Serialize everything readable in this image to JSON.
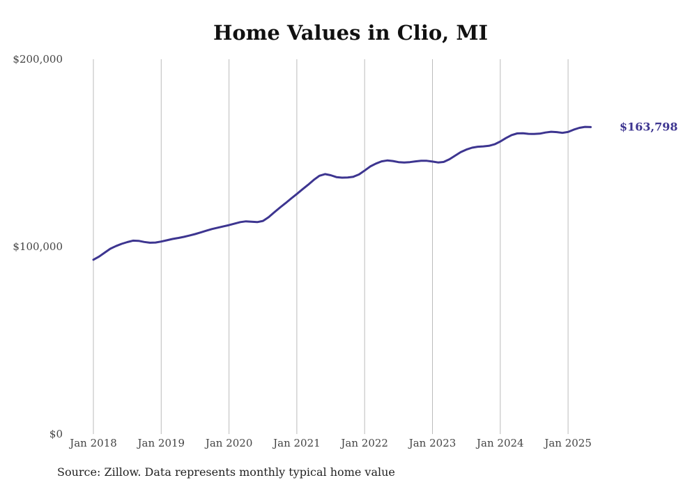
{
  "title": "Home Values in Clio, MI",
  "source_note": "Source: Zillow. Data represents monthly typical home value",
  "colors": {
    "line": "#3d3590",
    "grid": "#bbbbbb",
    "text": "#444444"
  },
  "chart_data": {
    "type": "line",
    "title": "Home Values in Clio, MI",
    "xlabel": "",
    "ylabel": "",
    "ylim": [
      0,
      200000
    ],
    "y_ticks": [
      {
        "value": 0,
        "label": "$0"
      },
      {
        "value": 100000,
        "label": "$100,000"
      },
      {
        "value": 200000,
        "label": "$200,000"
      }
    ],
    "x_ticks": [
      {
        "date": "2018-01",
        "label": "Jan 2018"
      },
      {
        "date": "2019-01",
        "label": "Jan 2019"
      },
      {
        "date": "2020-01",
        "label": "Jan 2020"
      },
      {
        "date": "2021-01",
        "label": "Jan 2021"
      },
      {
        "date": "2022-01",
        "label": "Jan 2022"
      },
      {
        "date": "2023-01",
        "label": "Jan 2023"
      },
      {
        "date": "2024-01",
        "label": "Jan 2024"
      },
      {
        "date": "2025-01",
        "label": "Jan 2025"
      }
    ],
    "grid": "vertical",
    "end_label": "$163,798",
    "series": [
      {
        "values": [
          [
            "2018-01",
            93000
          ],
          [
            "2018-02",
            94700
          ],
          [
            "2018-03",
            96800
          ],
          [
            "2018-04",
            98900
          ],
          [
            "2018-05",
            100300
          ],
          [
            "2018-06",
            101500
          ],
          [
            "2018-07",
            102400
          ],
          [
            "2018-08",
            103200
          ],
          [
            "2018-09",
            103100
          ],
          [
            "2018-10",
            102500
          ],
          [
            "2018-11",
            102100
          ],
          [
            "2018-12",
            102200
          ],
          [
            "2019-01",
            102700
          ],
          [
            "2019-02",
            103400
          ],
          [
            "2019-03",
            104100
          ],
          [
            "2019-04",
            104600
          ],
          [
            "2019-05",
            105200
          ],
          [
            "2019-06",
            105900
          ],
          [
            "2019-07",
            106700
          ],
          [
            "2019-08",
            107600
          ],
          [
            "2019-09",
            108500
          ],
          [
            "2019-10",
            109400
          ],
          [
            "2019-11",
            110100
          ],
          [
            "2019-12",
            110800
          ],
          [
            "2020-01",
            111500
          ],
          [
            "2020-02",
            112300
          ],
          [
            "2020-03",
            113100
          ],
          [
            "2020-04",
            113500
          ],
          [
            "2020-05",
            113300
          ],
          [
            "2020-06",
            113100
          ],
          [
            "2020-07",
            113700
          ],
          [
            "2020-08",
            115700
          ],
          [
            "2020-09",
            118300
          ],
          [
            "2020-10",
            120800
          ],
          [
            "2020-11",
            123200
          ],
          [
            "2020-12",
            125700
          ],
          [
            "2021-01",
            128100
          ],
          [
            "2021-02",
            130600
          ],
          [
            "2021-03",
            133000
          ],
          [
            "2021-04",
            135600
          ],
          [
            "2021-05",
            137800
          ],
          [
            "2021-06",
            138700
          ],
          [
            "2021-07",
            138100
          ],
          [
            "2021-08",
            137100
          ],
          [
            "2021-09",
            136800
          ],
          [
            "2021-10",
            136900
          ],
          [
            "2021-11",
            137300
          ],
          [
            "2021-12",
            138500
          ],
          [
            "2022-01",
            140600
          ],
          [
            "2022-02",
            142800
          ],
          [
            "2022-03",
            144300
          ],
          [
            "2022-04",
            145500
          ],
          [
            "2022-05",
            146000
          ],
          [
            "2022-06",
            145700
          ],
          [
            "2022-07",
            145100
          ],
          [
            "2022-08",
            144900
          ],
          [
            "2022-09",
            145100
          ],
          [
            "2022-10",
            145500
          ],
          [
            "2022-11",
            145800
          ],
          [
            "2022-12",
            145800
          ],
          [
            "2023-01",
            145400
          ],
          [
            "2023-02",
            144900
          ],
          [
            "2023-03",
            145200
          ],
          [
            "2023-04",
            146600
          ],
          [
            "2023-05",
            148500
          ],
          [
            "2023-06",
            150400
          ],
          [
            "2023-07",
            151800
          ],
          [
            "2023-08",
            152800
          ],
          [
            "2023-09",
            153300
          ],
          [
            "2023-10",
            153500
          ],
          [
            "2023-11",
            153800
          ],
          [
            "2023-12",
            154600
          ],
          [
            "2024-01",
            156100
          ],
          [
            "2024-02",
            157900
          ],
          [
            "2024-03",
            159500
          ],
          [
            "2024-04",
            160400
          ],
          [
            "2024-05",
            160500
          ],
          [
            "2024-06",
            160200
          ],
          [
            "2024-07",
            160100
          ],
          [
            "2024-08",
            160300
          ],
          [
            "2024-09",
            160900
          ],
          [
            "2024-10",
            161300
          ],
          [
            "2024-11",
            161100
          ],
          [
            "2024-12",
            160700
          ],
          [
            "2025-01",
            161200
          ],
          [
            "2025-02",
            162400
          ],
          [
            "2025-03",
            163400
          ],
          [
            "2025-04",
            163900
          ],
          [
            "2025-05",
            163798
          ]
        ]
      }
    ]
  }
}
